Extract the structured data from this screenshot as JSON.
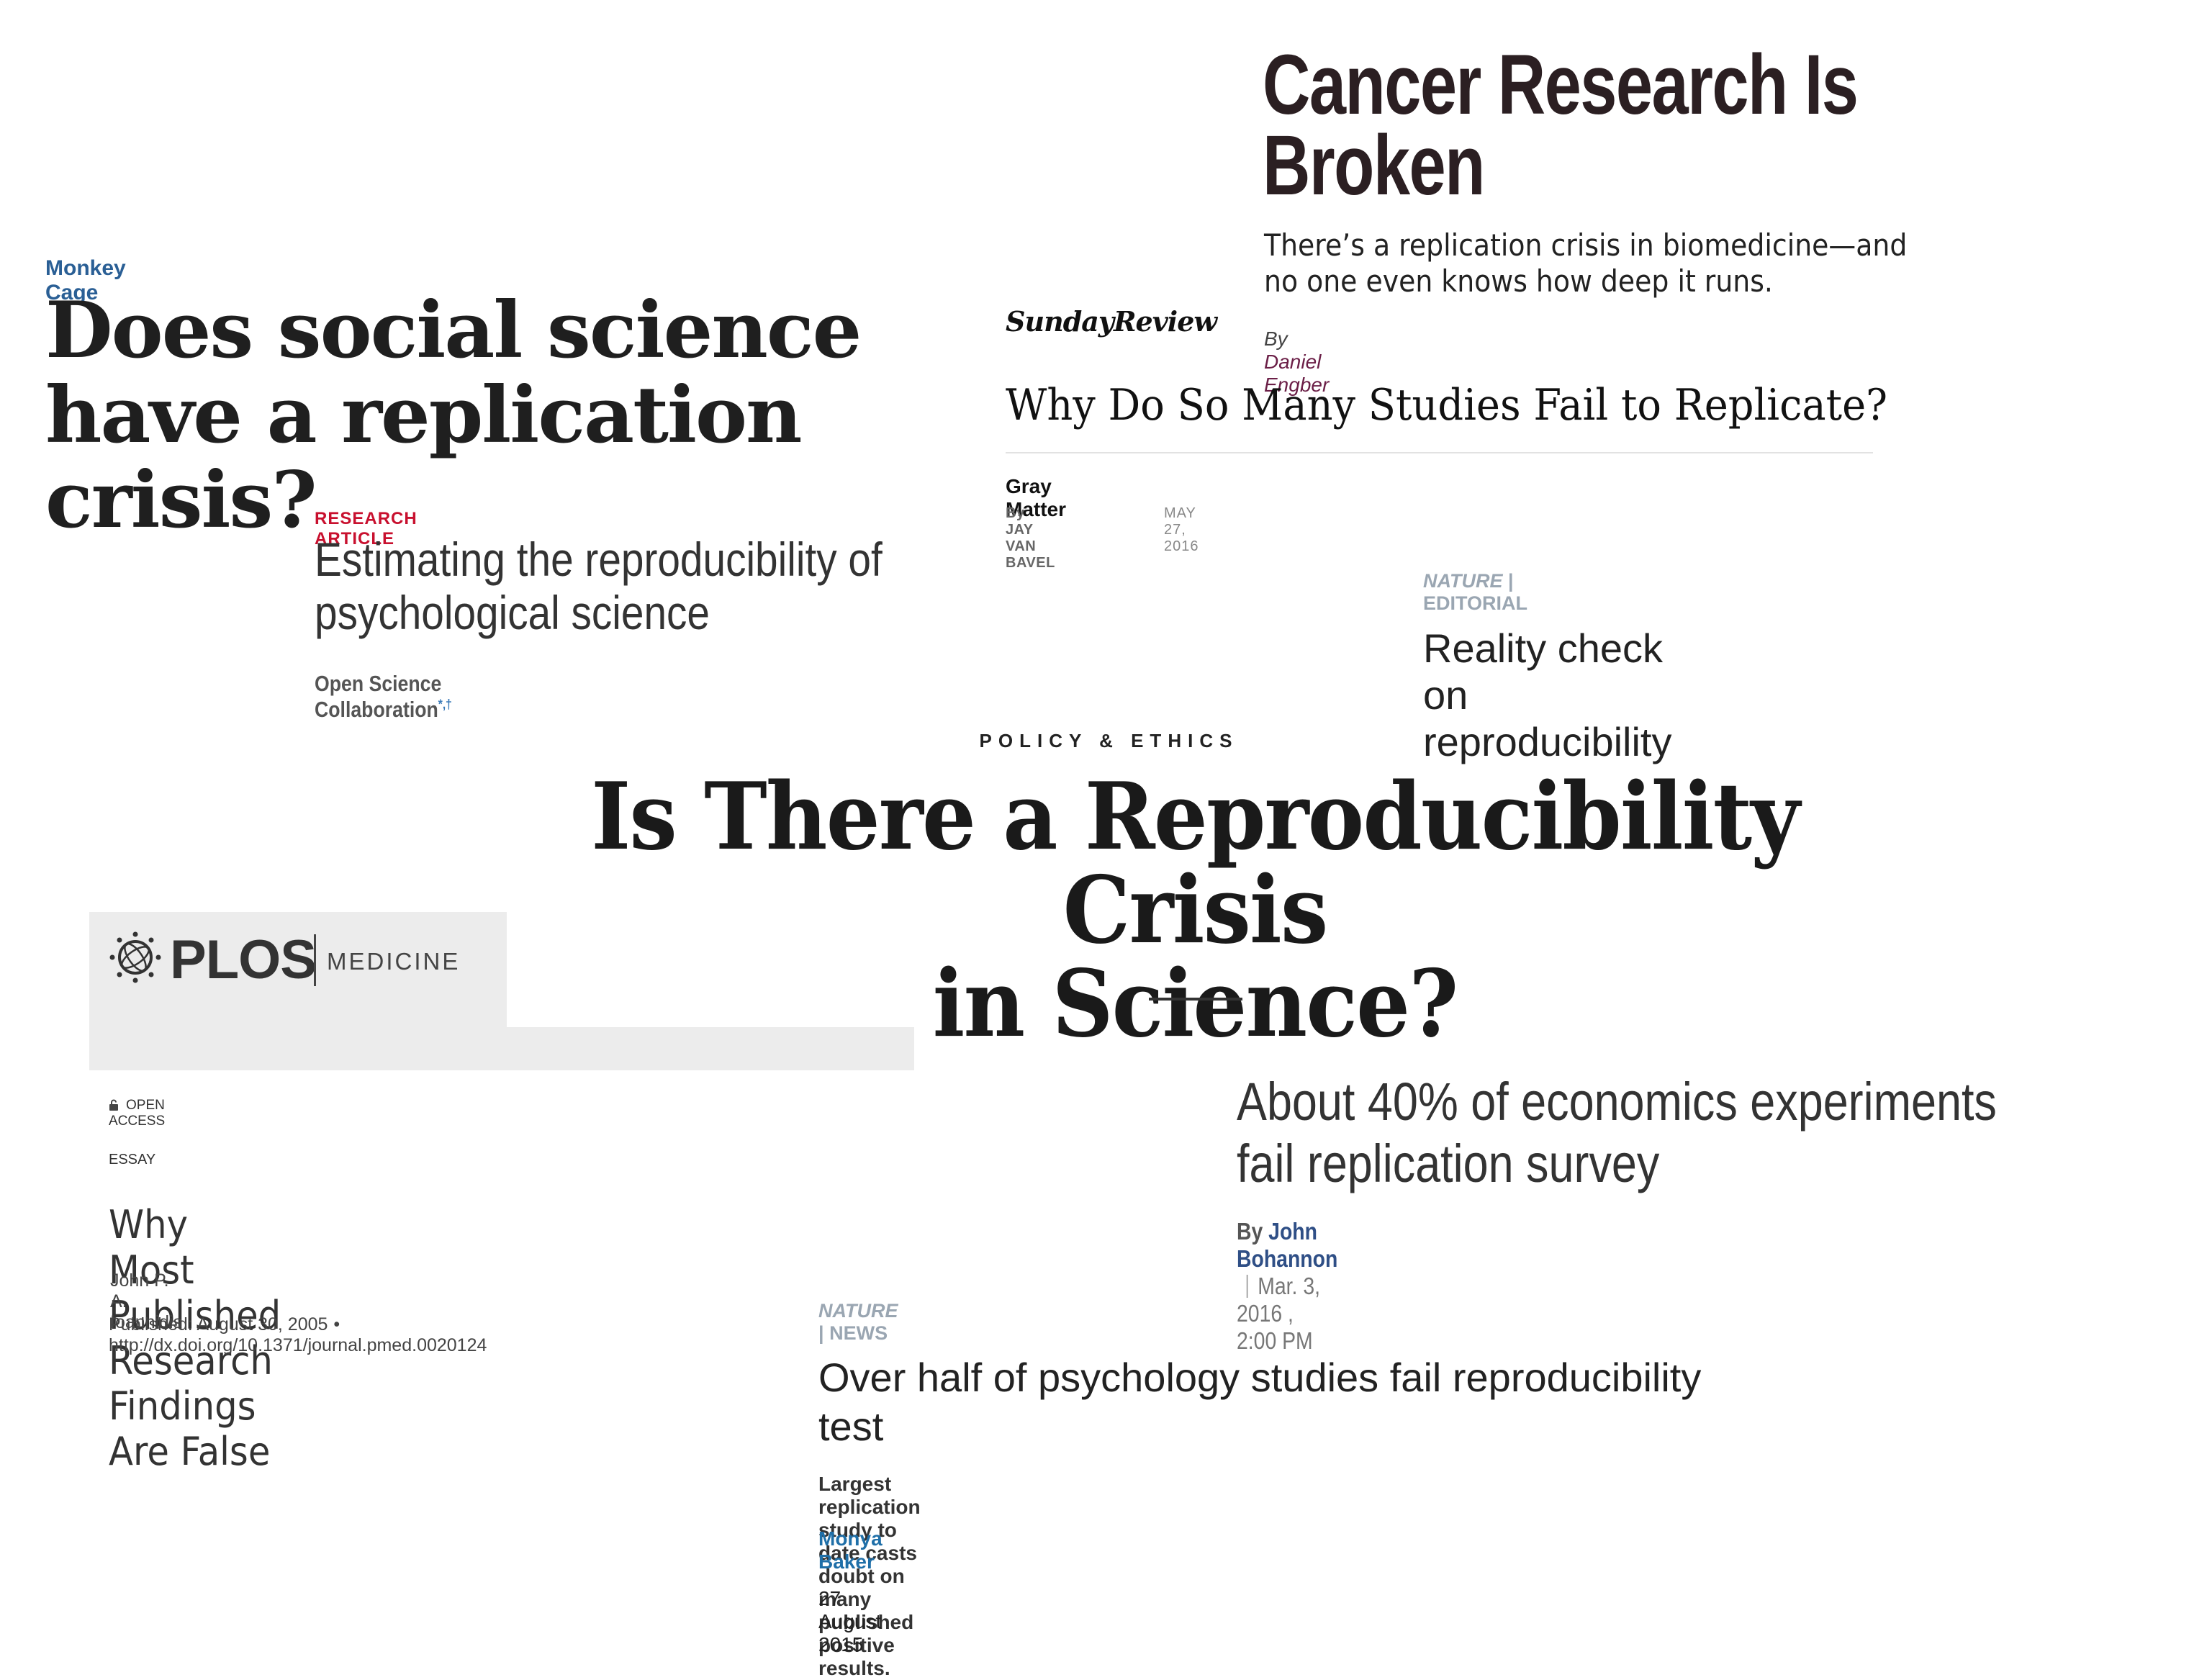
{
  "wapo": {
    "kicker": "Monkey Cage",
    "title": "Does social science have a replication crisis?"
  },
  "science_article": {
    "kicker": "RESEARCH ARTICLE",
    "title": "Estimating the reproducibility of psychological science",
    "author": "Open Science Collaboration",
    "author_marks": "*,†"
  },
  "slate": {
    "title": "Cancer Research Is Broken",
    "dek": "There’s a replication crisis in biomedicine—and no one even knows how deep it runs.",
    "by_prefix": "By",
    "author": "Daniel Engber"
  },
  "nyt": {
    "section_logo": "SundayReview",
    "title": "Why Do So Many Studies Fail to Replicate?",
    "column": "Gray Matter",
    "byline": "By JAY VAN BAVEL",
    "date": "MAY 27, 2016"
  },
  "nature_editorial": {
    "journal": "NATURE",
    "separator": "|",
    "section": "EDITORIAL",
    "title": "Reality check on reproducibility"
  },
  "policy_ethics": {
    "kicker": "POLICY & ETHICS",
    "title_line1": "Is There a Reproducibility Crisis",
    "title_line2": "in Science?"
  },
  "plos": {
    "logo_text": "PLOS",
    "journal": "MEDICINE",
    "open_access": "OPEN ACCESS",
    "article_type": "ESSAY",
    "title": "Why Most Published Research Findings Are False",
    "author": "John P. A. Ioannidis",
    "published": "Published: August 30, 2005",
    "bullet": "•",
    "doi": "http://dx.doi.org/10.1371/journal.pmed.0020124",
    "colors": {
      "banner": "#ececec"
    }
  },
  "science_econ": {
    "title": "About 40% of economics experiments fail replication survey",
    "by_prefix": "By",
    "author": "John Bohannon",
    "date": "Mar. 3, 2016 , 2:00 PM"
  },
  "nature_news": {
    "journal": "NATURE",
    "separator": "|",
    "section": "NEWS",
    "title": "Over half of psychology studies fail reproducibility test",
    "dek": "Largest replication study to date casts doubt on many published positive results.",
    "author": "Monya Baker",
    "date": "27 August 2015"
  },
  "colors": {
    "wapo_kicker": "#2a5f95",
    "science_kicker": "#c8102e",
    "slate_author": "#6b1f47",
    "nature_kicker": "#9aa6b2",
    "econ_author": "#2f4f86",
    "nature_author": "#1f6fa8"
  }
}
